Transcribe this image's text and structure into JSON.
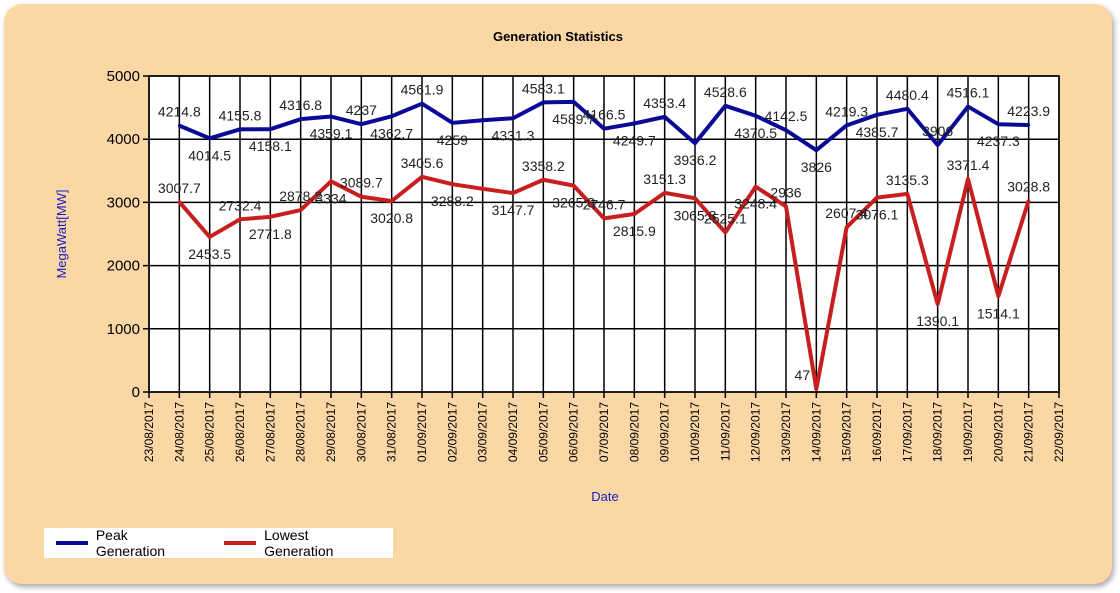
{
  "chart_data": {
    "type": "line",
    "title": "Generation Statistics",
    "xlabel": "Date",
    "ylabel": "MegaWatt[MW]",
    "ylim": [
      0,
      5000
    ],
    "yticks": [
      "0",
      "1000",
      "2000",
      "3000",
      "4000",
      "5000"
    ],
    "grid": true,
    "legend_placement": "bottom-left",
    "x_ticks": [
      "23/08/2017",
      "24/08/2017",
      "25/08/2017",
      "26/08/2017",
      "27/08/2017",
      "28/08/2017",
      "29/08/2017",
      "30/08/2017",
      "31/08/2017",
      "01/09/2017",
      "02/09/2017",
      "03/09/2017",
      "04/09/2017",
      "05/09/2017",
      "06/09/2017",
      "07/09/2017",
      "08/09/2017",
      "09/09/2017",
      "10/09/2017",
      "11/09/2017",
      "12/09/2017",
      "13/09/2017",
      "14/09/2017",
      "15/09/2017",
      "16/09/2017",
      "17/09/2017",
      "18/09/2017",
      "19/09/2017",
      "20/09/2017",
      "21/09/2017",
      "22/09/2017"
    ],
    "x": [
      "24/08/2017",
      "25/08/2017",
      "26/08/2017",
      "27/08/2017",
      "28/08/2017",
      "29/08/2017",
      "30/08/2017",
      "31/08/2017",
      "01/09/2017",
      "02/09/2017",
      "03/09/2017",
      "04/09/2017",
      "05/09/2017",
      "06/09/2017",
      "07/09/2017",
      "08/09/2017",
      "09/09/2017",
      "10/09/2017",
      "11/09/2017",
      "12/09/2017",
      "13/09/2017",
      "14/09/2017",
      "15/09/2017",
      "16/09/2017",
      "17/09/2017",
      "18/09/2017",
      "19/09/2017",
      "20/09/2017",
      "21/09/2017"
    ],
    "series": [
      {
        "name": "Peak Generation",
        "color": "#0a0a96",
        "values": [
          4214.8,
          4014.5,
          4155.8,
          4158.1,
          4316.8,
          4359.1,
          4237,
          4362.7,
          4561.9,
          4259,
          4300,
          4331.3,
          4583.1,
          4589.7,
          4166.5,
          4249.7,
          4353.4,
          3936.2,
          4528.6,
          4370.5,
          4142.5,
          3826,
          4219.3,
          4385.7,
          4480.4,
          3906,
          4516.1,
          4237.3,
          4223.9
        ],
        "labels": [
          "4214.8",
          "4014.5",
          "4155.8",
          "4158.1",
          "4316.8",
          "4359.1",
          "4237",
          "4362.7",
          "4561.9",
          "4259",
          "",
          "4331.3",
          "4583.1",
          "4589.7",
          "4166.5",
          "4249.7",
          "4353.4",
          "3936.2",
          "4528.6",
          "4370.5",
          "4142.5",
          "3826",
          "4219.3",
          "4385.7",
          "4480.4",
          "3906",
          "4516.1",
          "4237.3",
          "4223.9"
        ]
      },
      {
        "name": "Lowest Generation",
        "color": "#c81e1e",
        "values": [
          3007.7,
          2453.5,
          2732.4,
          2771.8,
          2878.2,
          3334,
          3089.7,
          3020.8,
          3405.6,
          3288.2,
          3215,
          3147.7,
          3358.2,
          3265.3,
          2746.7,
          2815.9,
          3151.3,
          3065.3,
          2525.1,
          3248.4,
          2936,
          47,
          2607.4,
          3076.1,
          3135.3,
          1390.1,
          3371.4,
          1514.1,
          3028.8
        ],
        "labels": [
          "3007.7",
          "2453.5",
          "2732.4",
          "2771.8",
          "2878.2",
          "3334",
          "3089.7",
          "3020.8",
          "3405.6",
          "3288.2",
          "",
          "3147.7",
          "3358.2",
          "3265.3",
          "2746.7",
          "2815.9",
          "3151.3",
          "3065.3",
          "2525.1",
          "3248.4",
          "2936",
          "47",
          "2607.4",
          "3076.1",
          "3135.3",
          "1390.1",
          "3371.4",
          "1514.1",
          "3028.8"
        ]
      }
    ]
  }
}
